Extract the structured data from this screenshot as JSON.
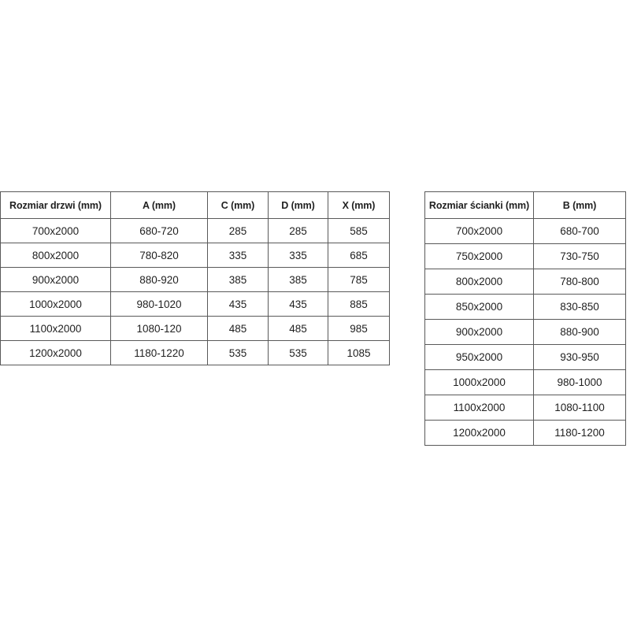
{
  "page": {
    "background_color": "#ffffff",
    "border_color": "#595959",
    "text_color": "#1f1f1f"
  },
  "doors_table": {
    "headers": [
      "Rozmiar drzwi (mm)",
      "A (mm)",
      "C (mm)",
      "D (mm)",
      "X (mm)"
    ],
    "rows": [
      [
        "700x2000",
        "680-720",
        "285",
        "285",
        "585"
      ],
      [
        "800x2000",
        "780-820",
        "335",
        "335",
        "685"
      ],
      [
        "900x2000",
        "880-920",
        "385",
        "385",
        "785"
      ],
      [
        "1000x2000",
        "980-1020",
        "435",
        "435",
        "885"
      ],
      [
        "1100x2000",
        "1080-120",
        "485",
        "485",
        "985"
      ],
      [
        "1200x2000",
        "1180-1220",
        "535",
        "535",
        "1085"
      ]
    ]
  },
  "walls_table": {
    "headers": [
      "Rozmiar ścianki (mm)",
      "B (mm)"
    ],
    "rows": [
      [
        "700x2000",
        "680-700"
      ],
      [
        "750x2000",
        "730-750"
      ],
      [
        "800x2000",
        "780-800"
      ],
      [
        "850x2000",
        "830-850"
      ],
      [
        "900x2000",
        "880-900"
      ],
      [
        "950x2000",
        "930-950"
      ],
      [
        "1000x2000",
        "980-1000"
      ],
      [
        "1100x2000",
        "1080-1100"
      ],
      [
        "1200x2000",
        "1180-1200"
      ]
    ]
  }
}
